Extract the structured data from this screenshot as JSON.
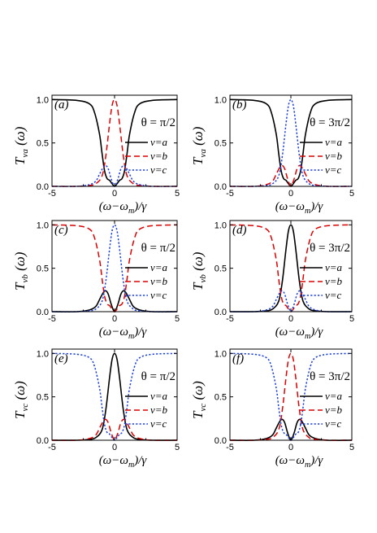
{
  "figure": {
    "x_axis_label": "(ω−ω_m)/γ",
    "x_ticks": [
      "-5",
      "0",
      "5"
    ],
    "y_ticks": [
      "0.0",
      "0.5",
      "1.0"
    ],
    "legend": [
      "v=a",
      "v=b",
      "v=c"
    ],
    "colors": {
      "a": "#000000",
      "b": "#dd0000",
      "c": "#1a3fe0"
    }
  },
  "chart_data": [
    {
      "type": "line",
      "panel": "(a)",
      "theta": "θ = π/2",
      "ylabel": "T_va(ω)",
      "ylabel_sub": "va",
      "xlim": [
        -5,
        5
      ],
      "ylim": [
        0,
        1.05
      ],
      "series": [
        {
          "name": "v=a",
          "style": "solid",
          "x": [
            -5,
            -3,
            -2,
            -1.6,
            -1.2,
            -1.0,
            -0.8,
            -0.6,
            -0.4,
            -0.2,
            0,
            0.2,
            0.4,
            0.6,
            0.8,
            1.0,
            1.2,
            1.6,
            2,
            3,
            5
          ],
          "y": [
            1.0,
            0.99,
            0.95,
            0.85,
            0.6,
            0.38,
            0.18,
            0.09,
            0.07,
            0.03,
            0.0,
            0.03,
            0.07,
            0.09,
            0.18,
            0.38,
            0.6,
            0.85,
            0.95,
            0.99,
            1.0
          ]
        },
        {
          "name": "v=b",
          "style": "dash",
          "x": [
            -5,
            -3,
            -2,
            -1.5,
            -1.0,
            -0.7,
            -0.4,
            -0.2,
            0,
            0.2,
            0.4,
            0.7,
            1.0,
            1.5,
            2,
            3,
            5
          ],
          "y": [
            0.0,
            0.0,
            0.01,
            0.03,
            0.12,
            0.35,
            0.72,
            0.93,
            1.0,
            0.93,
            0.72,
            0.35,
            0.12,
            0.03,
            0.01,
            0.0,
            0.0
          ]
        },
        {
          "name": "v=c",
          "style": "dot",
          "x": [
            -5,
            -3,
            -2,
            -1.5,
            -1.2,
            -0.9,
            -0.7,
            -0.5,
            -0.3,
            -0.1,
            0,
            0.1,
            0.3,
            0.5,
            0.7,
            0.9,
            1.2,
            1.5,
            2,
            3,
            5
          ],
          "y": [
            0.0,
            0.0,
            0.02,
            0.06,
            0.14,
            0.22,
            0.24,
            0.2,
            0.1,
            0.02,
            0.0,
            0.02,
            0.1,
            0.2,
            0.24,
            0.22,
            0.14,
            0.06,
            0.02,
            0.0,
            0.0
          ]
        }
      ]
    },
    {
      "type": "line",
      "panel": "(b)",
      "theta": "θ = 3π/2",
      "ylabel": "T_va(ω)",
      "ylabel_sub": "va",
      "xlim": [
        -5,
        5
      ],
      "ylim": [
        0,
        1.05
      ],
      "series": [
        {
          "name": "v=a",
          "style": "solid",
          "x": [
            -5,
            -3,
            -2,
            -1.6,
            -1.2,
            -1.0,
            -0.8,
            -0.6,
            -0.4,
            -0.2,
            0,
            0.2,
            0.4,
            0.6,
            0.8,
            1.0,
            1.2,
            1.6,
            2,
            3,
            5
          ],
          "y": [
            1.0,
            0.99,
            0.95,
            0.85,
            0.6,
            0.38,
            0.18,
            0.09,
            0.07,
            0.03,
            0.0,
            0.03,
            0.07,
            0.09,
            0.18,
            0.38,
            0.6,
            0.85,
            0.95,
            0.99,
            1.0
          ]
        },
        {
          "name": "v=b",
          "style": "dash",
          "x": [
            -5,
            -3,
            -2,
            -1.5,
            -1.2,
            -0.9,
            -0.7,
            -0.5,
            -0.3,
            -0.1,
            0,
            0.1,
            0.3,
            0.5,
            0.7,
            0.9,
            1.2,
            1.5,
            2,
            3,
            5
          ],
          "y": [
            0.0,
            0.0,
            0.02,
            0.06,
            0.14,
            0.22,
            0.24,
            0.2,
            0.1,
            0.02,
            0.0,
            0.02,
            0.1,
            0.2,
            0.24,
            0.22,
            0.14,
            0.06,
            0.02,
            0.0,
            0.0
          ]
        },
        {
          "name": "v=c",
          "style": "dot",
          "x": [
            -5,
            -3,
            -2,
            -1.5,
            -1.0,
            -0.7,
            -0.4,
            -0.2,
            0,
            0.2,
            0.4,
            0.7,
            1.0,
            1.5,
            2,
            3,
            5
          ],
          "y": [
            0.0,
            0.0,
            0.01,
            0.03,
            0.12,
            0.35,
            0.72,
            0.93,
            1.0,
            0.93,
            0.72,
            0.35,
            0.12,
            0.03,
            0.01,
            0.0,
            0.0
          ]
        }
      ]
    },
    {
      "type": "line",
      "panel": "(c)",
      "theta": "θ = π/2",
      "ylabel": "T_vb(ω)",
      "ylabel_sub": "vb",
      "xlim": [
        -5,
        5
      ],
      "ylim": [
        0,
        1.05
      ],
      "series": [
        {
          "name": "v=a",
          "style": "solid",
          "x": [
            -5,
            -3,
            -2,
            -1.5,
            -1.2,
            -0.9,
            -0.7,
            -0.5,
            -0.3,
            -0.1,
            0,
            0.1,
            0.3,
            0.5,
            0.7,
            0.9,
            1.2,
            1.5,
            2,
            3,
            5
          ],
          "y": [
            0.0,
            0.0,
            0.02,
            0.06,
            0.14,
            0.22,
            0.24,
            0.2,
            0.1,
            0.02,
            0.0,
            0.02,
            0.1,
            0.2,
            0.24,
            0.22,
            0.14,
            0.06,
            0.02,
            0.0,
            0.0
          ]
        },
        {
          "name": "v=b",
          "style": "dash",
          "x": [
            -5,
            -3,
            -2,
            -1.6,
            -1.2,
            -1.0,
            -0.8,
            -0.6,
            -0.4,
            -0.2,
            0,
            0.2,
            0.4,
            0.6,
            0.8,
            1.0,
            1.2,
            1.6,
            2,
            3,
            5
          ],
          "y": [
            1.0,
            0.99,
            0.95,
            0.85,
            0.6,
            0.38,
            0.18,
            0.09,
            0.07,
            0.03,
            0.0,
            0.03,
            0.07,
            0.09,
            0.18,
            0.38,
            0.6,
            0.85,
            0.95,
            0.99,
            1.0
          ]
        },
        {
          "name": "v=c",
          "style": "dot",
          "x": [
            -5,
            -3,
            -2,
            -1.5,
            -1.0,
            -0.7,
            -0.4,
            -0.2,
            0,
            0.2,
            0.4,
            0.7,
            1.0,
            1.5,
            2,
            3,
            5
          ],
          "y": [
            0.0,
            0.0,
            0.01,
            0.03,
            0.12,
            0.35,
            0.72,
            0.93,
            1.0,
            0.93,
            0.72,
            0.35,
            0.12,
            0.03,
            0.01,
            0.0,
            0.0
          ]
        }
      ]
    },
    {
      "type": "line",
      "panel": "(d)",
      "theta": "θ = 3π/2",
      "ylabel": "T_vb(ω)",
      "ylabel_sub": "vb",
      "xlim": [
        -5,
        5
      ],
      "ylim": [
        0,
        1.05
      ],
      "series": [
        {
          "name": "v=a",
          "style": "solid",
          "x": [
            -5,
            -3,
            -2,
            -1.5,
            -1.0,
            -0.7,
            -0.4,
            -0.2,
            0,
            0.2,
            0.4,
            0.7,
            1.0,
            1.5,
            2,
            3,
            5
          ],
          "y": [
            0.0,
            0.0,
            0.01,
            0.03,
            0.12,
            0.35,
            0.72,
            0.93,
            1.0,
            0.93,
            0.72,
            0.35,
            0.12,
            0.03,
            0.01,
            0.0,
            0.0
          ]
        },
        {
          "name": "v=b",
          "style": "dash",
          "x": [
            -5,
            -3,
            -2,
            -1.6,
            -1.2,
            -1.0,
            -0.8,
            -0.6,
            -0.4,
            -0.2,
            0,
            0.2,
            0.4,
            0.6,
            0.8,
            1.0,
            1.2,
            1.6,
            2,
            3,
            5
          ],
          "y": [
            1.0,
            0.99,
            0.95,
            0.85,
            0.6,
            0.38,
            0.18,
            0.09,
            0.07,
            0.03,
            0.0,
            0.03,
            0.07,
            0.09,
            0.18,
            0.38,
            0.6,
            0.85,
            0.95,
            0.99,
            1.0
          ]
        },
        {
          "name": "v=c",
          "style": "dot",
          "x": [
            -5,
            -3,
            -2,
            -1.5,
            -1.2,
            -0.9,
            -0.7,
            -0.5,
            -0.3,
            -0.1,
            0,
            0.1,
            0.3,
            0.5,
            0.7,
            0.9,
            1.2,
            1.5,
            2,
            3,
            5
          ],
          "y": [
            0.0,
            0.0,
            0.02,
            0.06,
            0.14,
            0.22,
            0.24,
            0.2,
            0.1,
            0.02,
            0.0,
            0.02,
            0.1,
            0.2,
            0.24,
            0.22,
            0.14,
            0.06,
            0.02,
            0.0,
            0.0
          ]
        }
      ]
    },
    {
      "type": "line",
      "panel": "(e)",
      "theta": "θ = π/2",
      "ylabel": "T_vc(ω)",
      "ylabel_sub": "vc",
      "xlim": [
        -5,
        5
      ],
      "ylim": [
        0,
        1.05
      ],
      "series": [
        {
          "name": "v=a",
          "style": "solid",
          "x": [
            -5,
            -3,
            -2,
            -1.5,
            -1.0,
            -0.7,
            -0.4,
            -0.2,
            0,
            0.2,
            0.4,
            0.7,
            1.0,
            1.5,
            2,
            3,
            5
          ],
          "y": [
            0.0,
            0.0,
            0.01,
            0.03,
            0.12,
            0.35,
            0.72,
            0.93,
            1.0,
            0.93,
            0.72,
            0.35,
            0.12,
            0.03,
            0.01,
            0.0,
            0.0
          ]
        },
        {
          "name": "v=b",
          "style": "dash",
          "x": [
            -5,
            -3,
            -2,
            -1.5,
            -1.2,
            -0.9,
            -0.7,
            -0.5,
            -0.3,
            -0.1,
            0,
            0.1,
            0.3,
            0.5,
            0.7,
            0.9,
            1.2,
            1.5,
            2,
            3,
            5
          ],
          "y": [
            0.0,
            0.0,
            0.02,
            0.06,
            0.14,
            0.22,
            0.24,
            0.2,
            0.1,
            0.02,
            0.0,
            0.02,
            0.1,
            0.2,
            0.24,
            0.22,
            0.14,
            0.06,
            0.02,
            0.0,
            0.0
          ]
        },
        {
          "name": "v=c",
          "style": "dot",
          "x": [
            -5,
            -3,
            -2,
            -1.6,
            -1.2,
            -1.0,
            -0.8,
            -0.6,
            -0.4,
            -0.2,
            0,
            0.2,
            0.4,
            0.6,
            0.8,
            1.0,
            1.2,
            1.6,
            2,
            3,
            5
          ],
          "y": [
            1.0,
            0.99,
            0.95,
            0.85,
            0.6,
            0.38,
            0.18,
            0.09,
            0.07,
            0.03,
            0.0,
            0.03,
            0.07,
            0.09,
            0.18,
            0.38,
            0.6,
            0.85,
            0.95,
            0.99,
            1.0
          ]
        }
      ]
    },
    {
      "type": "line",
      "panel": "(f)",
      "theta": "θ = 3π/2",
      "ylabel": "T_vc(ω)",
      "ylabel_sub": "vc",
      "xlim": [
        -5,
        5
      ],
      "ylim": [
        0,
        1.05
      ],
      "series": [
        {
          "name": "v=a",
          "style": "solid",
          "x": [
            -5,
            -3,
            -2,
            -1.5,
            -1.2,
            -0.9,
            -0.7,
            -0.5,
            -0.3,
            -0.1,
            0,
            0.1,
            0.3,
            0.5,
            0.7,
            0.9,
            1.2,
            1.5,
            2,
            3,
            5
          ],
          "y": [
            0.0,
            0.0,
            0.02,
            0.06,
            0.14,
            0.22,
            0.24,
            0.2,
            0.1,
            0.02,
            0.0,
            0.02,
            0.1,
            0.2,
            0.24,
            0.22,
            0.14,
            0.06,
            0.02,
            0.0,
            0.0
          ]
        },
        {
          "name": "v=b",
          "style": "dash",
          "x": [
            -5,
            -3,
            -2,
            -1.5,
            -1.0,
            -0.7,
            -0.4,
            -0.2,
            0,
            0.2,
            0.4,
            0.7,
            1.0,
            1.5,
            2,
            3,
            5
          ],
          "y": [
            0.0,
            0.0,
            0.01,
            0.03,
            0.12,
            0.35,
            0.72,
            0.93,
            1.0,
            0.93,
            0.72,
            0.35,
            0.12,
            0.03,
            0.01,
            0.0,
            0.0
          ]
        },
        {
          "name": "v=c",
          "style": "dot",
          "x": [
            -5,
            -3,
            -2,
            -1.6,
            -1.2,
            -1.0,
            -0.8,
            -0.6,
            -0.4,
            -0.2,
            0,
            0.2,
            0.4,
            0.6,
            0.8,
            1.0,
            1.2,
            1.6,
            2,
            3,
            5
          ],
          "y": [
            1.0,
            0.99,
            0.95,
            0.85,
            0.6,
            0.38,
            0.18,
            0.09,
            0.07,
            0.03,
            0.0,
            0.03,
            0.07,
            0.09,
            0.18,
            0.38,
            0.6,
            0.85,
            0.95,
            0.99,
            1.0
          ]
        }
      ]
    }
  ]
}
